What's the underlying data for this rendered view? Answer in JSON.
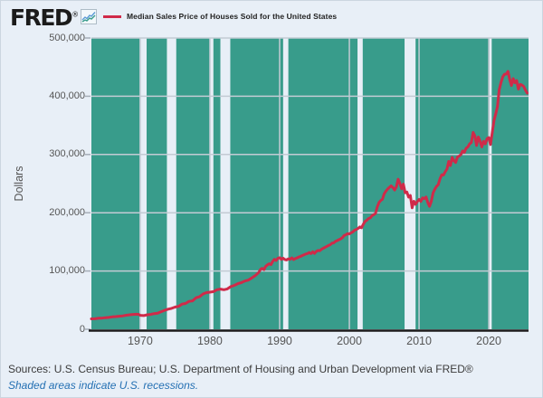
{
  "header": {
    "logo_text": "FRED",
    "logo_registered": "®",
    "legend": {
      "label": "Median Sales Price of Houses Sold for the United States",
      "line_color": "#d02a49"
    }
  },
  "footer": {
    "sources": "Sources: U.S. Census Bureau; U.S. Department of Housing and Urban Development via FRED®",
    "recession_note": "Shaded areas indicate U.S. recessions."
  },
  "colors": {
    "page_bg": "#e8eff7",
    "plot_bg": "#389c8b",
    "recession_band": "#e8eff7",
    "gridline": "#c3cbd4",
    "axis_line": "#1a1a1a",
    "tick_mark": "#a6aeb8",
    "axis_text": "#555555",
    "line": "#d02a49"
  },
  "chart_data": {
    "type": "line",
    "title": "Median Sales Price of Houses Sold for the United States",
    "xlabel": "",
    "ylabel": "Dollars",
    "xlim": [
      1963,
      2025.7
    ],
    "ylim": [
      0,
      500000
    ],
    "x_ticks": [
      1970,
      1980,
      1990,
      2000,
      2010,
      2020
    ],
    "y_ticks": [
      0,
      100000,
      200000,
      300000,
      400000,
      500000
    ],
    "grid": true,
    "legend_position": "top-left",
    "recessions": [
      [
        1969.92,
        1970.92
      ],
      [
        1973.83,
        1975.17
      ],
      [
        1980.0,
        1980.5
      ],
      [
        1981.5,
        1982.92
      ],
      [
        1990.5,
        1991.25
      ],
      [
        2001.17,
        2001.92
      ],
      [
        2007.92,
        2009.5
      ],
      [
        2020.08,
        2020.42
      ]
    ],
    "series": [
      {
        "name": "Median Sales Price of Houses Sold for the United States",
        "units": "Dollars",
        "points": [
          [
            1963,
            17800
          ],
          [
            1963.5,
            18050
          ],
          [
            1964,
            18900
          ],
          [
            1964.5,
            19100
          ],
          [
            1965,
            19900
          ],
          [
            1965.5,
            20400
          ],
          [
            1966,
            21200
          ],
          [
            1966.5,
            21700
          ],
          [
            1967,
            22400
          ],
          [
            1967.5,
            23000
          ],
          [
            1968,
            24100
          ],
          [
            1968.5,
            24900
          ],
          [
            1969,
            25500
          ],
          [
            1969.5,
            25800
          ],
          [
            1969.75,
            25600
          ],
          [
            1970,
            23900
          ],
          [
            1970.5,
            23400
          ],
          [
            1970.75,
            24000
          ],
          [
            1971,
            24800
          ],
          [
            1971.5,
            25500
          ],
          [
            1972,
            26800
          ],
          [
            1972.5,
            27600
          ],
          [
            1973,
            30200
          ],
          [
            1973.5,
            32500
          ],
          [
            1974,
            34400
          ],
          [
            1974.5,
            35900
          ],
          [
            1975,
            38100
          ],
          [
            1975.5,
            39300
          ],
          [
            1976,
            43200
          ],
          [
            1976.5,
            44200
          ],
          [
            1977,
            47900
          ],
          [
            1977.5,
            48800
          ],
          [
            1978,
            54000
          ],
          [
            1978.5,
            55700
          ],
          [
            1979,
            60600
          ],
          [
            1979.5,
            62900
          ],
          [
            1980,
            63700
          ],
          [
            1980.5,
            64600
          ],
          [
            1981,
            67800
          ],
          [
            1981.5,
            68900
          ],
          [
            1982,
            67800
          ],
          [
            1982.5,
            69300
          ],
          [
            1983,
            73300
          ],
          [
            1983.5,
            75300
          ],
          [
            1984,
            78200
          ],
          [
            1984.5,
            79900
          ],
          [
            1985,
            82800
          ],
          [
            1985.5,
            84300
          ],
          [
            1986,
            88000
          ],
          [
            1986.5,
            92000
          ],
          [
            1987,
            97500
          ],
          [
            1987.25,
            102700
          ],
          [
            1987.5,
            104500
          ],
          [
            1987.75,
            102500
          ],
          [
            1988,
            108000
          ],
          [
            1988.25,
            110500
          ],
          [
            1988.5,
            112500
          ],
          [
            1988.75,
            111000
          ],
          [
            1989,
            116500
          ],
          [
            1989.25,
            120000
          ],
          [
            1989.5,
            118000
          ],
          [
            1989.75,
            122000
          ],
          [
            1990,
            122900
          ],
          [
            1990.25,
            120000
          ],
          [
            1990.5,
            122000
          ],
          [
            1990.75,
            119600
          ],
          [
            1991,
            119000
          ],
          [
            1991.25,
            121000
          ],
          [
            1991.5,
            120000
          ],
          [
            1991.75,
            122500
          ],
          [
            1992,
            119500
          ],
          [
            1992.25,
            121500
          ],
          [
            1992.5,
            122500
          ],
          [
            1992.75,
            124000
          ],
          [
            1993,
            125000
          ],
          [
            1993.25,
            126500
          ],
          [
            1993.5,
            127800
          ],
          [
            1993.75,
            129200
          ],
          [
            1994,
            130000
          ],
          [
            1994.25,
            131700
          ],
          [
            1994.5,
            129800
          ],
          [
            1994.75,
            132900
          ],
          [
            1995,
            130200
          ],
          [
            1995.25,
            133500
          ],
          [
            1995.5,
            135300
          ],
          [
            1995.75,
            134800
          ],
          [
            1996,
            137200
          ],
          [
            1996.25,
            139000
          ],
          [
            1996.5,
            140600
          ],
          [
            1996.75,
            142300
          ],
          [
            1997,
            143800
          ],
          [
            1997.25,
            145100
          ],
          [
            1997.5,
            147700
          ],
          [
            1997.75,
            148300
          ],
          [
            1998,
            150700
          ],
          [
            1998.25,
            152200
          ],
          [
            1998.5,
            153700
          ],
          [
            1998.75,
            155200
          ],
          [
            1999,
            157200
          ],
          [
            1999.25,
            160800
          ],
          [
            1999.5,
            162200
          ],
          [
            1999.75,
            164100
          ],
          [
            2000,
            163700
          ],
          [
            2000.25,
            165600
          ],
          [
            2000.5,
            167200
          ],
          [
            2000.75,
            170100
          ],
          [
            2001,
            171200
          ],
          [
            2001.25,
            173100
          ],
          [
            2001.5,
            175600
          ],
          [
            2001.75,
            174200
          ],
          [
            2002,
            180200
          ],
          [
            2002.25,
            185200
          ],
          [
            2002.5,
            187100
          ],
          [
            2002.75,
            190100
          ],
          [
            2003,
            191200
          ],
          [
            2003.25,
            195100
          ],
          [
            2003.5,
            196700
          ],
          [
            2003.75,
            198800
          ],
          [
            2004,
            209700
          ],
          [
            2004.25,
            217600
          ],
          [
            2004.5,
            221000
          ],
          [
            2004.75,
            223100
          ],
          [
            2005,
            232500
          ],
          [
            2005.25,
            237300
          ],
          [
            2005.5,
            240900
          ],
          [
            2005.75,
            243600
          ],
          [
            2006,
            246300
          ],
          [
            2006.25,
            243200
          ],
          [
            2006.5,
            239000
          ],
          [
            2006.75,
            244700
          ],
          [
            2007,
            257400
          ],
          [
            2007.25,
            250100
          ],
          [
            2007.5,
            241200
          ],
          [
            2007.75,
            249100
          ],
          [
            2008,
            234300
          ],
          [
            2008.25,
            235500
          ],
          [
            2008.5,
            226800
          ],
          [
            2008.75,
            229600
          ],
          [
            2009,
            208400
          ],
          [
            2009.25,
            219700
          ],
          [
            2009.5,
            214500
          ],
          [
            2009.75,
            219300
          ],
          [
            2010,
            222900
          ],
          [
            2010.25,
            219600
          ],
          [
            2010.5,
            225500
          ],
          [
            2010.75,
            224300
          ],
          [
            2011,
            226900
          ],
          [
            2011.25,
            217700
          ],
          [
            2011.5,
            211100
          ],
          [
            2011.75,
            219100
          ],
          [
            2012,
            233800
          ],
          [
            2012.25,
            240200
          ],
          [
            2012.5,
            245200
          ],
          [
            2012.75,
            248000
          ],
          [
            2013,
            258400
          ],
          [
            2013.25,
            265100
          ],
          [
            2013.5,
            264800
          ],
          [
            2013.75,
            270200
          ],
          [
            2014,
            275200
          ],
          [
            2014.25,
            288000
          ],
          [
            2014.5,
            281000
          ],
          [
            2014.75,
            295000
          ],
          [
            2015,
            289200
          ],
          [
            2015.25,
            286300
          ],
          [
            2015.5,
            295500
          ],
          [
            2015.75,
            297400
          ],
          [
            2016,
            299800
          ],
          [
            2016.25,
            306000
          ],
          [
            2016.5,
            303800
          ],
          [
            2016.75,
            310900
          ],
          [
            2017,
            313100
          ],
          [
            2017.25,
            318200
          ],
          [
            2017.5,
            320500
          ],
          [
            2017.75,
            337900
          ],
          [
            2018,
            331800
          ],
          [
            2018.25,
            315600
          ],
          [
            2018.5,
            330000
          ],
          [
            2018.75,
            322800
          ],
          [
            2019,
            313000
          ],
          [
            2019.25,
            322500
          ],
          [
            2019.5,
            318400
          ],
          [
            2019.75,
            327100
          ],
          [
            2020,
            329000
          ],
          [
            2020.25,
            317100
          ],
          [
            2020.5,
            337500
          ],
          [
            2020.75,
            358700
          ],
          [
            2021,
            369800
          ],
          [
            2021.25,
            382600
          ],
          [
            2021.5,
            411200
          ],
          [
            2021.75,
            423600
          ],
          [
            2022,
            433100
          ],
          [
            2022.25,
            437700
          ],
          [
            2022.5,
            438000
          ],
          [
            2022.75,
            442600
          ],
          [
            2023,
            429000
          ],
          [
            2023.25,
            418500
          ],
          [
            2023.5,
            430300
          ],
          [
            2023.75,
            423200
          ],
          [
            2024,
            426800
          ],
          [
            2024.25,
            412300
          ],
          [
            2024.5,
            420400
          ],
          [
            2024.75,
            419200
          ],
          [
            2025,
            416900
          ],
          [
            2025.25,
            410800
          ],
          [
            2025.5,
            405400
          ]
        ]
      }
    ]
  }
}
